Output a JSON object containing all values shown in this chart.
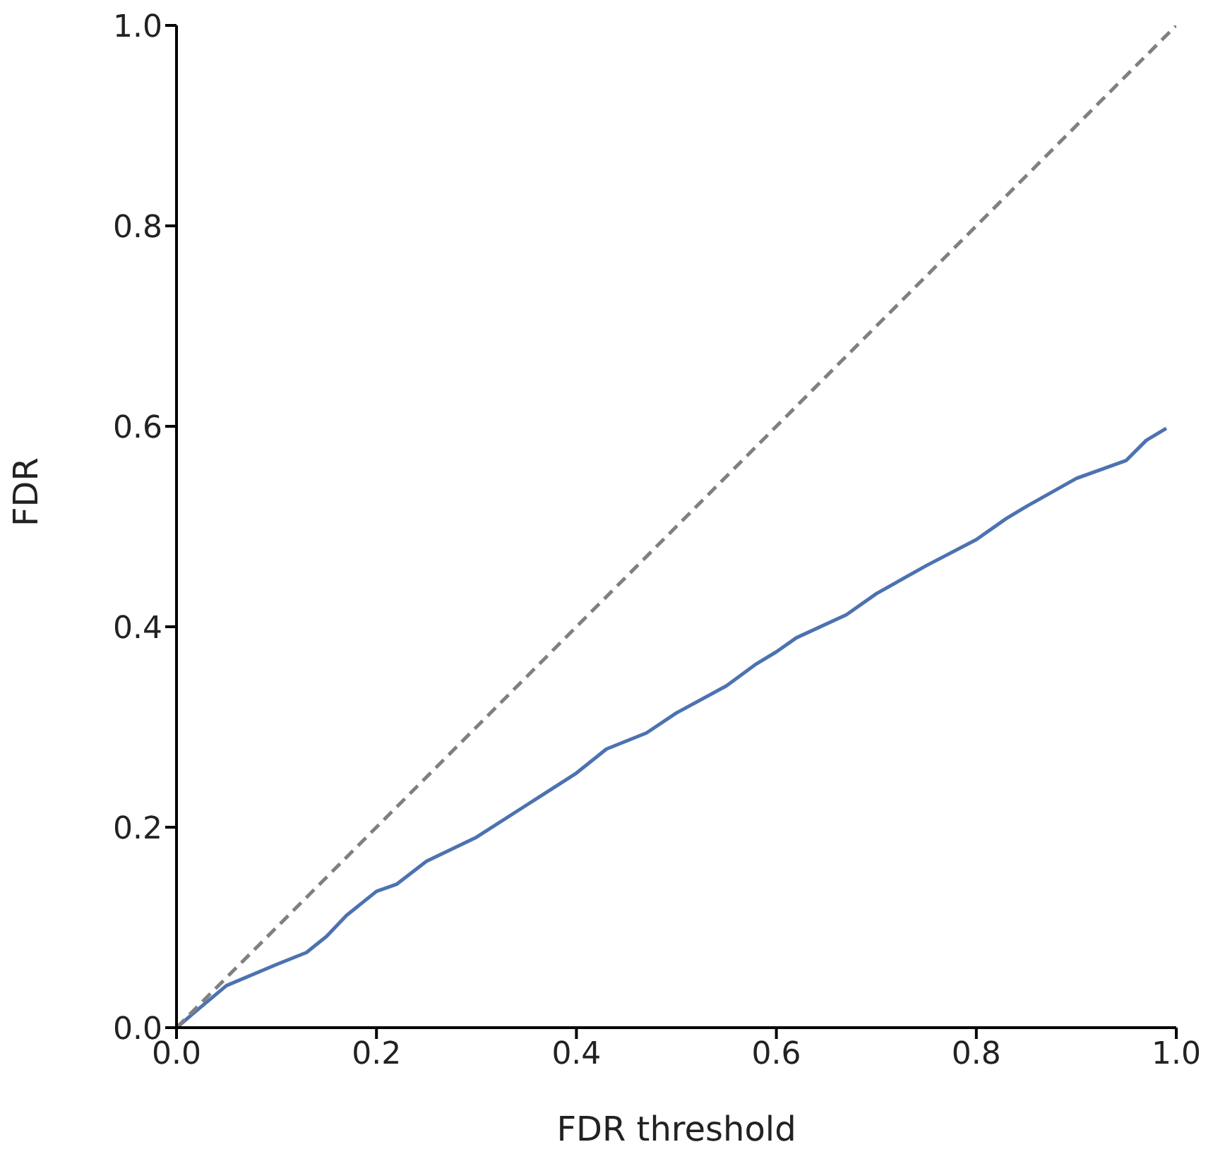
{
  "chart_data": {
    "type": "line",
    "xlabel": "FDR threshold",
    "ylabel": "FDR",
    "xlim": [
      0,
      1
    ],
    "ylim": [
      0,
      1
    ],
    "xticks": [
      {
        "value": 0,
        "label": "0.0"
      },
      {
        "value": 0.2,
        "label": "0.2"
      },
      {
        "value": 0.4,
        "label": "0.4"
      },
      {
        "value": 0.6,
        "label": "0.6"
      },
      {
        "value": 0.8,
        "label": "0.8"
      },
      {
        "value": 1,
        "label": "1.0"
      }
    ],
    "yticks": [
      {
        "value": 0,
        "label": "0.0"
      },
      {
        "value": 0.2,
        "label": "0.2"
      },
      {
        "value": 0.4,
        "label": "0.4"
      },
      {
        "value": 0.6,
        "label": "0.6"
      },
      {
        "value": 0.8,
        "label": "0.8"
      },
      {
        "value": 1,
        "label": "1.0"
      }
    ],
    "grid": false,
    "marker": "none",
    "series": [
      {
        "color": "#4c72b0",
        "line_style": "solid",
        "x": [
          0,
          0.02,
          0.05,
          0.1,
          0.13,
          0.15,
          0.17,
          0.2,
          0.22,
          0.25,
          0.3,
          0.35,
          0.4,
          0.43,
          0.47,
          0.5,
          0.55,
          0.58,
          0.6,
          0.62,
          0.67,
          0.7,
          0.75,
          0.8,
          0.83,
          0.85,
          0.9,
          0.95,
          0.97,
          0.99
        ],
        "values": [
          0,
          0.017,
          0.042,
          0.063,
          0.075,
          0.091,
          0.112,
          0.136,
          0.143,
          0.166,
          0.19,
          0.222,
          0.254,
          0.278,
          0.294,
          0.314,
          0.341,
          0.363,
          0.375,
          0.389,
          0.412,
          0.433,
          0.461,
          0.487,
          0.508,
          0.52,
          0.548,
          0.566,
          0.586,
          0.598
        ]
      },
      {
        "color": "#808080",
        "line_style": "dashed",
        "x": [
          0,
          1
        ],
        "values": [
          0,
          1
        ]
      }
    ]
  }
}
